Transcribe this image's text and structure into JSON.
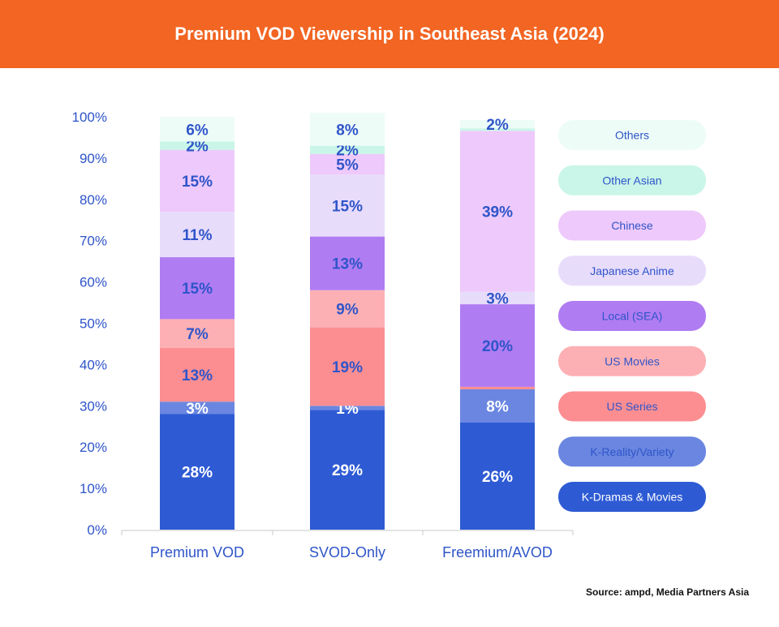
{
  "header": {
    "title": "Premium VOD Viewership in Southeast Asia (2024)",
    "background": "#f26522"
  },
  "source": "Source: ampd, Media Partners Asia",
  "chart_data": {
    "type": "bar",
    "stacked": true,
    "title": "Premium VOD Viewership in Southeast Asia (2024)",
    "categories": [
      "Premium VOD",
      "SVOD-Only",
      "Freemium/AVOD"
    ],
    "ylim": [
      0,
      100
    ],
    "yticks": [
      "0%",
      "10%",
      "20%",
      "30%",
      "40%",
      "50%",
      "60%",
      "70%",
      "80%",
      "90%",
      "100%"
    ],
    "legend_position": "right",
    "grid": false,
    "series": [
      {
        "name": "K-Dramas & Movies",
        "color": "#2e5bd4",
        "values": [
          28,
          29,
          26
        ],
        "labels": [
          "28%",
          "29%",
          "26%"
        ]
      },
      {
        "name": "K-Reality/Variety",
        "color": "#6a86e0",
        "values": [
          3,
          1,
          8
        ],
        "labels": [
          "3%",
          "1%",
          "8%"
        ]
      },
      {
        "name": "US Series",
        "color": "#fc8e92",
        "values": [
          13,
          19,
          0.6
        ],
        "labels": [
          "13%",
          "19%",
          ""
        ]
      },
      {
        "name": "US Movies",
        "color": "#fdb0b4",
        "values": [
          7,
          9,
          0
        ],
        "labels": [
          "7%",
          "9%",
          ""
        ]
      },
      {
        "name": "Local (SEA)",
        "color": "#b07cf2",
        "values": [
          15,
          13,
          20
        ],
        "labels": [
          "15%",
          "13%",
          "20%"
        ]
      },
      {
        "name": "Japanese Anime",
        "color": "#e8dcfb",
        "values": [
          11,
          15,
          3
        ],
        "labels": [
          "11%",
          "15%",
          "3%"
        ]
      },
      {
        "name": "Chinese",
        "color": "#eec9fb",
        "values": [
          15,
          5,
          39
        ],
        "labels": [
          "15%",
          "5%",
          "39%"
        ]
      },
      {
        "name": "Other Asian",
        "color": "#c9f6e8",
        "values": [
          2,
          2,
          0.6
        ],
        "labels": [
          "2%",
          "2%",
          ""
        ]
      },
      {
        "name": "Others",
        "color": "#eefcf8",
        "values": [
          6,
          8,
          2
        ],
        "labels": [
          "6%",
          "8%",
          "2%"
        ]
      }
    ],
    "label_color_dark": "#2f55c9",
    "label_color_light": "#ffffff"
  }
}
